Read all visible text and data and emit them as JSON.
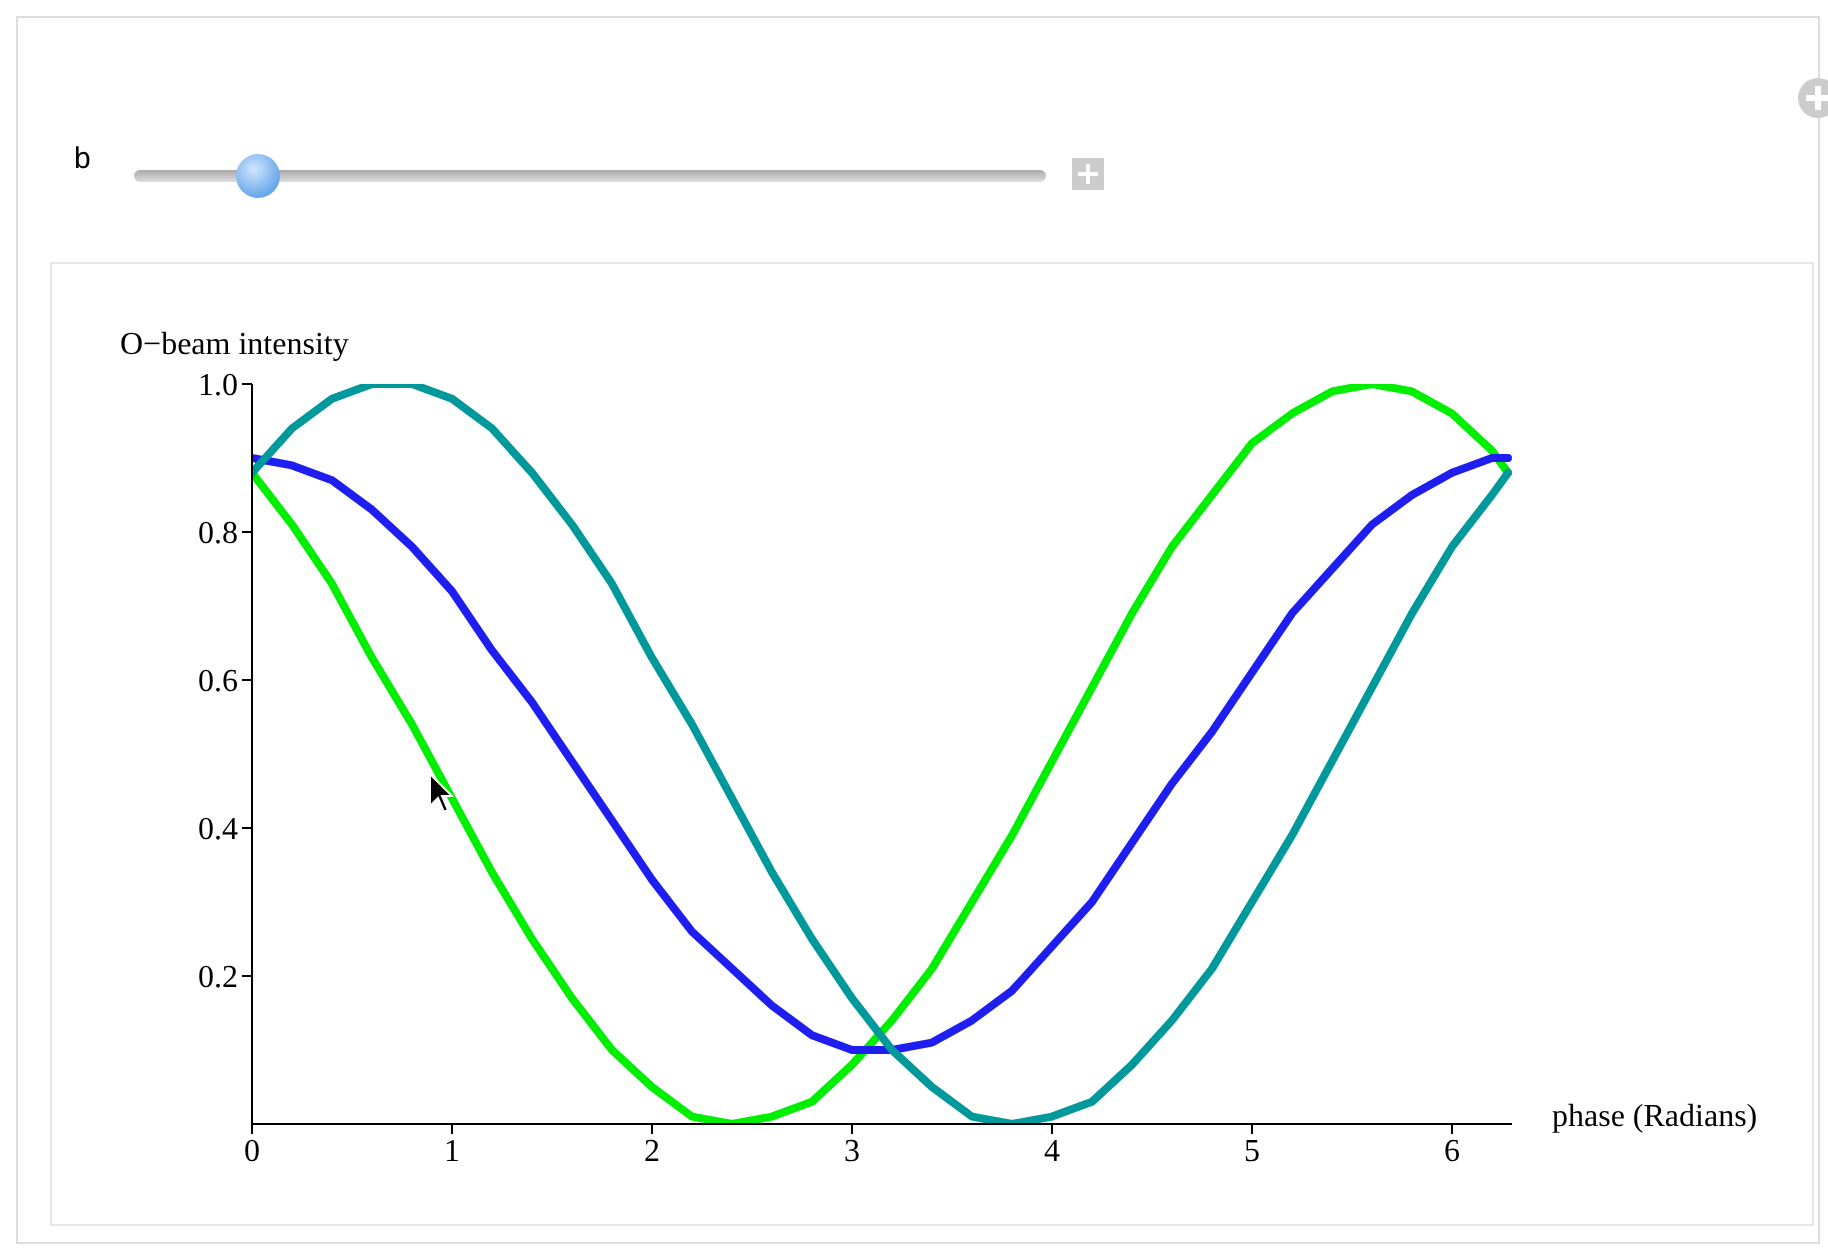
{
  "chart_data": {
    "type": "line",
    "xlabel": "phase (Radians)",
    "ylabel": "O−beam intensity",
    "annotations": [
      "b"
    ],
    "x": [
      0,
      0.2,
      0.4,
      0.6,
      0.8,
      1.0,
      1.2,
      1.4,
      1.6,
      1.8,
      2.0,
      2.2,
      2.4,
      2.6,
      2.8,
      3.0,
      3.2,
      3.4,
      3.6,
      3.8,
      4.0,
      4.2,
      4.4,
      4.6,
      4.8,
      5.0,
      5.2,
      5.4,
      5.6,
      5.8,
      6.0,
      6.2,
      6.28
    ],
    "series": [
      {
        "color": "#00ee00",
        "values": [
          0.88,
          0.81,
          0.73,
          0.63,
          0.54,
          0.44,
          0.34,
          0.25,
          0.17,
          0.1,
          0.05,
          0.01,
          0.0,
          0.01,
          0.03,
          0.08,
          0.14,
          0.21,
          0.3,
          0.39,
          0.49,
          0.59,
          0.69,
          0.78,
          0.85,
          0.92,
          0.96,
          0.99,
          1.0,
          0.99,
          0.96,
          0.91,
          0.88
        ]
      },
      {
        "color": "#1e1ef0",
        "values": [
          0.9,
          0.89,
          0.87,
          0.83,
          0.78,
          0.72,
          0.64,
          0.57,
          0.49,
          0.41,
          0.33,
          0.26,
          0.21,
          0.16,
          0.12,
          0.1,
          0.1,
          0.11,
          0.14,
          0.18,
          0.24,
          0.3,
          0.38,
          0.46,
          0.53,
          0.61,
          0.69,
          0.75,
          0.81,
          0.85,
          0.88,
          0.9,
          0.9
        ]
      },
      {
        "color": "#00999b",
        "values": [
          0.88,
          0.94,
          0.98,
          1.0,
          1.0,
          0.98,
          0.94,
          0.88,
          0.81,
          0.73,
          0.63,
          0.54,
          0.44,
          0.34,
          0.25,
          0.17,
          0.1,
          0.05,
          0.01,
          0.0,
          0.01,
          0.03,
          0.08,
          0.14,
          0.21,
          0.3,
          0.39,
          0.49,
          0.59,
          0.69,
          0.78,
          0.85,
          0.88
        ]
      }
    ],
    "xlim": [
      0,
      6.3
    ],
    "xticks": [
      0,
      1,
      2,
      3,
      4,
      5,
      6
    ],
    "ylim": [
      0,
      1.0
    ],
    "yticks": [
      0.2,
      0.4,
      0.6,
      0.8,
      {
        "value": 1.0,
        "label": "1.0"
      }
    ],
    "grid": false,
    "legend": false,
    "marker": "none",
    "line_style": "solid"
  }
}
